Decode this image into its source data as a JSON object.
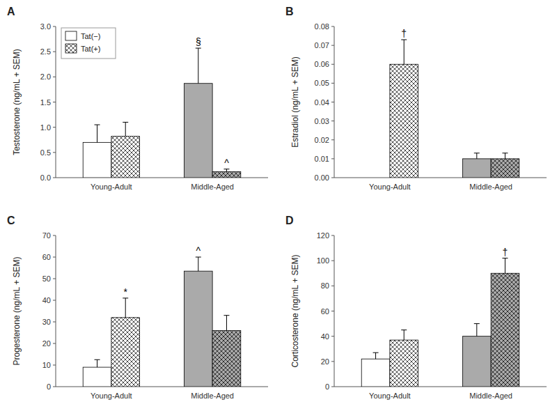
{
  "chart_data": [
    {
      "type": "bar",
      "title": "A",
      "y_label": "Testosterone (ng/mL + SEM)",
      "categories": [
        "Young-Adult",
        "Middle-Aged"
      ],
      "series": [
        {
          "name": "Tat(−)",
          "colors": [
            "#FFFFFF",
            "#AAAAAA"
          ],
          "values": [
            0.7,
            1.87
          ],
          "errors": [
            0.35,
            0.7
          ]
        },
        {
          "name": "Tat(+)",
          "colors": [
            "#FFFFFF",
            "#AAAAAA"
          ],
          "values": [
            0.82,
            0.12
          ],
          "errors": [
            0.28,
            0.05
          ]
        }
      ],
      "ylim": [
        0,
        3.0
      ],
      "yticks": [
        {
          "value": 0.0,
          "label": "0.0"
        },
        0.5,
        {
          "value": 1.0,
          "label": "1.0"
        },
        1.5,
        {
          "value": 2.0,
          "label": "2.0"
        },
        2.5,
        {
          "value": 3.0,
          "label": "3.0"
        }
      ],
      "annotations": [
        {
          "text": "§",
          "series": 0,
          "index": 1
        },
        {
          "text": "^",
          "series": 1,
          "index": 1
        }
      ],
      "legend": "upper left",
      "grid": false
    },
    {
      "type": "bar",
      "title": "B",
      "y_label": "Estradiol (ng/mL + SEM)",
      "categories": [
        "Young-Adult",
        "Middle-Aged"
      ],
      "series": [
        {
          "colors": [
            "#FFFFFF",
            "#AAAAAA"
          ],
          "values": [
            0.0,
            0.01
          ],
          "errors": [
            0.0,
            0.003
          ]
        },
        {
          "colors": [
            "#FFFFFF",
            "#AAAAAA"
          ],
          "values": [
            0.06,
            0.01
          ],
          "errors": [
            0.013,
            0.003
          ]
        }
      ],
      "ylim": [
        0,
        0.08
      ],
      "yticks": [
        {
          "value": 0.0,
          "label": "0.00"
        },
        0.01,
        0.02,
        0.03,
        0.04,
        0.05,
        0.06,
        0.07,
        0.08
      ],
      "annotations": [
        {
          "text": "†",
          "series": 1,
          "index": 0
        }
      ],
      "grid": false
    },
    {
      "type": "bar",
      "title": "C",
      "y_label": "Progesterone (ng/mL + SEM)",
      "categories": [
        "Young-Adult",
        "Middle-Aged"
      ],
      "series": [
        {
          "colors": [
            "#FFFFFF",
            "#AAAAAA"
          ],
          "values": [
            9.0,
            53.5
          ],
          "errors": [
            3.5,
            6.5
          ]
        },
        {
          "colors": [
            "#FFFFFF",
            "#AAAAAA"
          ],
          "values": [
            32.0,
            26.0
          ],
          "errors": [
            9.0,
            7.0
          ]
        }
      ],
      "ylim": [
        0,
        70
      ],
      "yticks": [
        0,
        10,
        20,
        30,
        40,
        50,
        60,
        70
      ],
      "annotations": [
        {
          "text": "*",
          "series": 1,
          "index": 0
        },
        {
          "text": "^",
          "series": 0,
          "index": 1
        }
      ],
      "grid": false
    },
    {
      "type": "bar",
      "title": "D",
      "y_label": "Corticosterone (ng/mL + SEM)",
      "categories": [
        "Young-Adult",
        "Middle-Aged"
      ],
      "series": [
        {
          "colors": [
            "#FFFFFF",
            "#AAAAAA"
          ],
          "values": [
            22.0,
            40.0
          ],
          "errors": [
            5.0,
            10.0
          ]
        },
        {
          "colors": [
            "#FFFFFF",
            "#AAAAAA"
          ],
          "values": [
            37.0,
            90.0
          ],
          "errors": [
            8.0,
            12.0
          ]
        }
      ],
      "ylim": [
        0,
        120
      ],
      "yticks": [
        0,
        20,
        40,
        60,
        80,
        100,
        120
      ],
      "annotations": [
        {
          "text": "†",
          "series": 1,
          "index": 1
        }
      ],
      "grid": false
    }
  ]
}
